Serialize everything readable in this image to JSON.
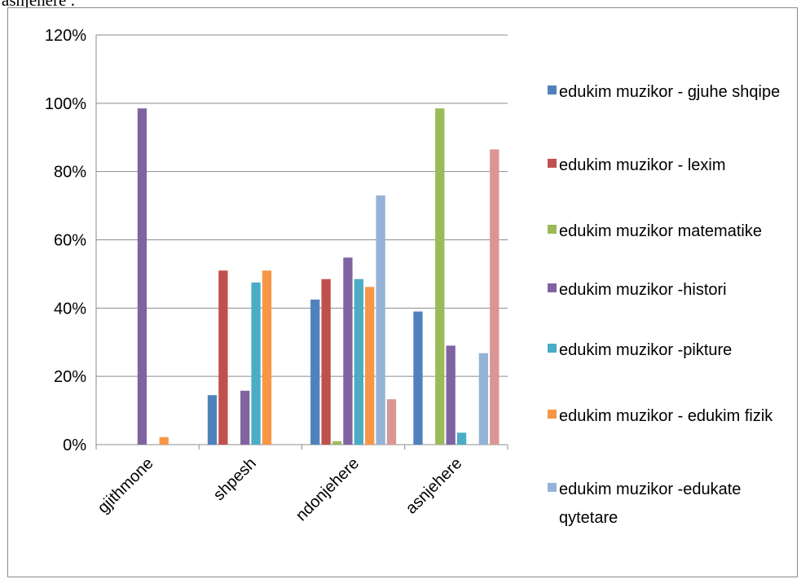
{
  "caption": "asnjehere :",
  "chart_data": {
    "type": "bar",
    "categories": [
      "gjithmone",
      "shpesh",
      "ndonjehere",
      "asnjehere"
    ],
    "ylim": [
      0,
      1.2
    ],
    "yticks": [
      "0%",
      "20%",
      "40%",
      "60%",
      "80%",
      "100%",
      "120%"
    ],
    "grid": true,
    "legend_position": "right",
    "series": [
      {
        "name": "edukim muzikor - gjuhe shqipe",
        "color": "#4f81bd",
        "values": [
          0,
          0.145,
          0.425,
          0.39
        ]
      },
      {
        "name": "edukim muzikor - lexim",
        "color": "#c0504d",
        "values": [
          0,
          0.51,
          0.485,
          0
        ]
      },
      {
        "name": "edukim muzikor matematike",
        "color": "#9bbb59",
        "values": [
          0,
          0,
          0.01,
          0.985
        ]
      },
      {
        "name": "edukim muzikor -histori",
        "color": "#8064a2",
        "values": [
          0.985,
          0.158,
          0.548,
          0.29
        ]
      },
      {
        "name": "edukim muzikor -pikture",
        "color": "#4bacc6",
        "values": [
          0,
          0.475,
          0.485,
          0.035
        ]
      },
      {
        "name": "edukim muzikor - edukim fizik",
        "color": "#f79646",
        "values": [
          0.022,
          0.51,
          0.462,
          0
        ]
      },
      {
        "name": "edukim muzikor -edukate qytetare",
        "color": "#95b3d7",
        "values": [
          0,
          0,
          0.73,
          0.268
        ]
      },
      {
        "name": "",
        "color": "#d99694",
        "values": [
          0,
          0,
          0.133,
          0.865
        ]
      }
    ]
  }
}
